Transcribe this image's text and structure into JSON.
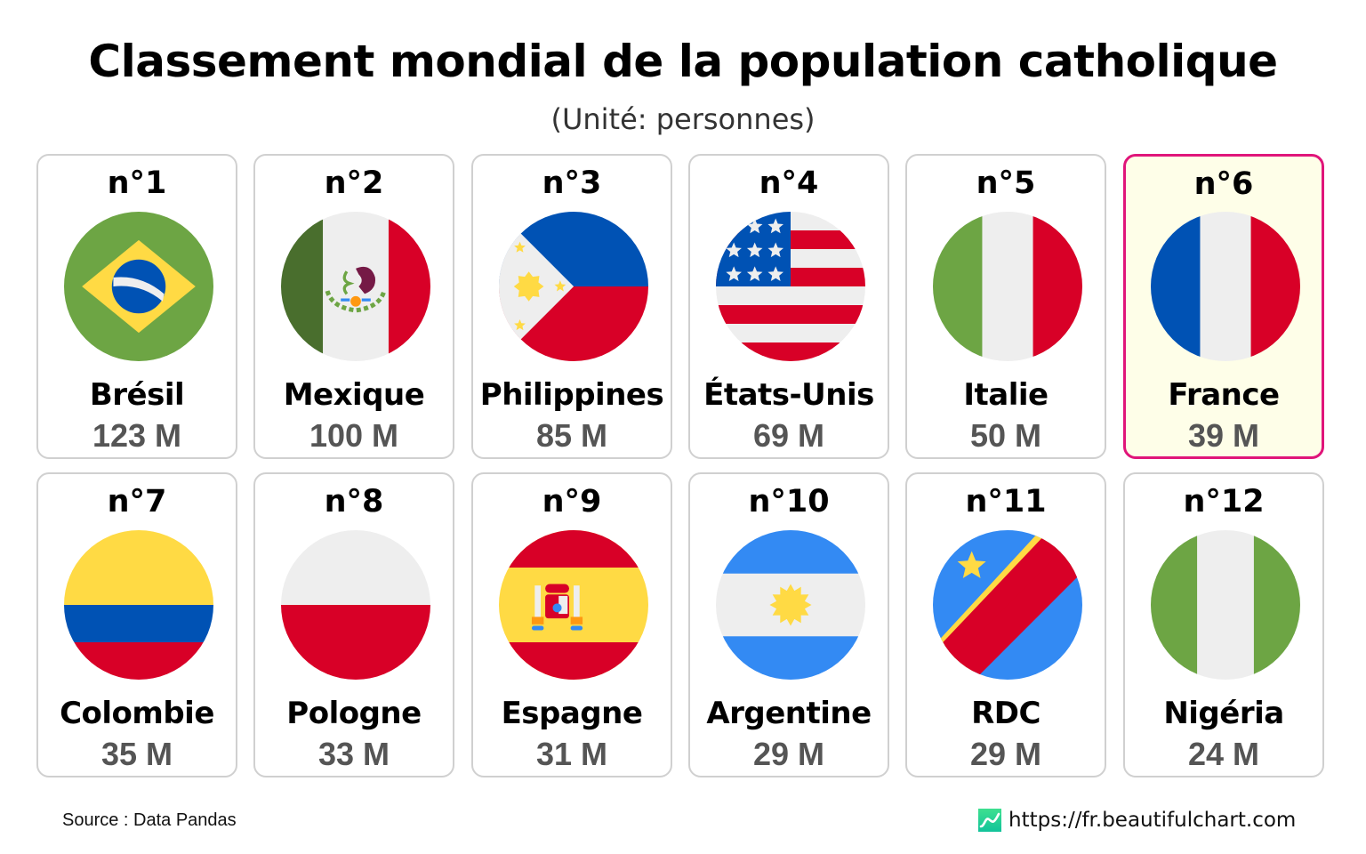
{
  "header": {
    "title": "Classement mondial de la population catholique",
    "subtitle": "(Unité: personnes)"
  },
  "colors": {
    "card_border": "#d0d0d0",
    "highlight_border": "#e0157a",
    "highlight_background": "#fefee8",
    "value_text": "#555555"
  },
  "chart_data": {
    "type": "table",
    "title": "Classement mondial de la population catholique",
    "subtitle": "(Unité: personnes)",
    "unit": "M",
    "highlighted": "France",
    "items": [
      {
        "rank": "n°1",
        "country": "Brésil",
        "value": 123,
        "label": "123 M",
        "flag": "brazil-flag-icon"
      },
      {
        "rank": "n°2",
        "country": "Mexique",
        "value": 100,
        "label": "100 M",
        "flag": "mexico-flag-icon"
      },
      {
        "rank": "n°3",
        "country": "Philippines",
        "value": 85,
        "label": "85 M",
        "flag": "philippines-flag-icon"
      },
      {
        "rank": "n°4",
        "country": "États-Unis",
        "value": 69,
        "label": "69 M",
        "flag": "usa-flag-icon"
      },
      {
        "rank": "n°5",
        "country": "Italie",
        "value": 50,
        "label": "50 M",
        "flag": "italy-flag-icon"
      },
      {
        "rank": "n°6",
        "country": "France",
        "value": 39,
        "label": "39 M",
        "flag": "france-flag-icon"
      },
      {
        "rank": "n°7",
        "country": "Colombie",
        "value": 35,
        "label": "35 M",
        "flag": "colombia-flag-icon"
      },
      {
        "rank": "n°8",
        "country": "Pologne",
        "value": 33,
        "label": "33 M",
        "flag": "poland-flag-icon"
      },
      {
        "rank": "n°9",
        "country": "Espagne",
        "value": 31,
        "label": "31 M",
        "flag": "spain-flag-icon"
      },
      {
        "rank": "n°10",
        "country": "Argentine",
        "value": 29,
        "label": "29 M",
        "flag": "argentina-flag-icon"
      },
      {
        "rank": "n°11",
        "country": "RDC",
        "value": 29,
        "label": "29 M",
        "flag": "dr-congo-flag-icon"
      },
      {
        "rank": "n°12",
        "country": "Nigéria",
        "value": 24,
        "label": "24 M",
        "flag": "nigeria-flag-icon"
      }
    ]
  },
  "footer": {
    "source": "Source : Data Pandas",
    "website": "https://fr.beautifulchart.com",
    "logo_icon": "beautifulchart-logo-icon"
  }
}
